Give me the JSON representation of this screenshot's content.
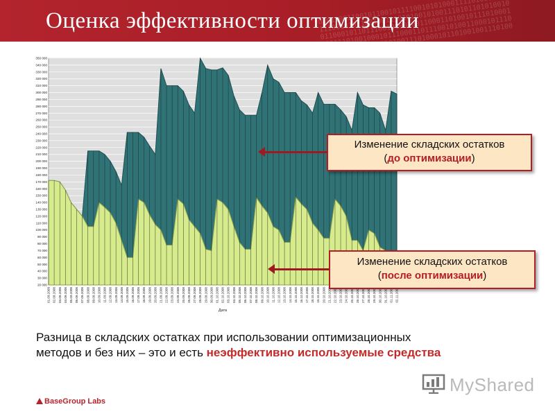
{
  "header": {
    "title": "Оценка эффективности оптимизации"
  },
  "callouts": {
    "before": {
      "line1": "Изменение складских остатков",
      "open": "(",
      "hl": "до оптимизации",
      "close": ")"
    },
    "after": {
      "line1": "Изменение складских остатков",
      "open": "(",
      "hl": "после оптимизации",
      "close": ")"
    }
  },
  "caption": {
    "line1": "Разница в складских остатках при использовании оптимизационных",
    "line2": "методов и без них – это и есть ",
    "hl": "неэффективно используемые средства"
  },
  "footer": {
    "brand": "BaseGroup Labs",
    "logo": "MyShared"
  },
  "colors": {
    "header": "#b3242d",
    "before_area": "#2f7376",
    "after_area": "#d6ec8c",
    "accent": "#b31e25"
  },
  "chart_data": {
    "type": "area",
    "xlabel": "Дата",
    "ylabel": "",
    "ylim": [
      20000,
      350000
    ],
    "yticks": [
      20000,
      30000,
      40000,
      50000,
      60000,
      70000,
      80000,
      90000,
      100000,
      110000,
      120000,
      130000,
      140000,
      150000,
      160000,
      170000,
      180000,
      190000,
      200000,
      210000,
      220000,
      230000,
      240000,
      250000,
      260000,
      270000,
      280000,
      290000,
      300000,
      310000,
      320000,
      330000,
      340000,
      350000
    ],
    "yticklabels": [
      "20 000",
      "30 000",
      "40 000",
      "50 000",
      "60 000",
      "70 000",
      "80 000",
      "90 000",
      "100 000",
      "110 000",
      "120 000",
      "130 000",
      "140 000",
      "150 000",
      "160 000",
      "170 000",
      "180 000",
      "190 000",
      "200 000",
      "210 000",
      "220 000",
      "230 000",
      "240 000",
      "250 000",
      "260 000",
      "270 000",
      "280 000",
      "290 000",
      "300 000",
      "310 000",
      "320 000",
      "330 000",
      "340 000",
      "350 000"
    ],
    "x": [
      "01.09.2008",
      "02.09.2008",
      "03.09.2008",
      "04.09.2008",
      "05.09.2008",
      "06.09.2008",
      "07.09.2008",
      "08.09.2008",
      "09.09.2008",
      "10.09.2008",
      "11.09.2008",
      "12.09.2008",
      "13.09.2008",
      "14.09.2008",
      "15.09.2008",
      "16.09.2008",
      "17.09.2008",
      "18.09.2008",
      "19.09.2008",
      "20.09.2008",
      "21.09.2008",
      "22.09.2008",
      "23.09.2008",
      "24.09.2008",
      "25.09.2008",
      "26.09.2008",
      "27.09.2008",
      "28.09.2008",
      "29.09.2008",
      "30.09.2008",
      "01.10.2008",
      "02.10.2008",
      "03.10.2008",
      "04.10.2008",
      "05.10.2008",
      "06.10.2008",
      "07.10.2008",
      "08.10.2008",
      "09.10.2008",
      "10.10.2008",
      "11.10.2008",
      "12.10.2008",
      "13.10.2008",
      "14.10.2008",
      "15.10.2008",
      "16.10.2008",
      "17.10.2008",
      "18.10.2008",
      "19.10.2008",
      "20.10.2008",
      "21.10.2008",
      "22.10.2008",
      "23.10.2008",
      "24.10.2008",
      "25.10.2008",
      "26.10.2008",
      "27.10.2008",
      "28.10.2008",
      "29.10.2008",
      "30.10.2008",
      "31.10.2008",
      "01.11.2008",
      "02.11.2008"
    ],
    "grid": true,
    "legend": "none",
    "series": [
      {
        "values": [
          172000,
          172000,
          170000,
          158000,
          140000,
          130000,
          120000,
          215000,
          215000,
          215000,
          210000,
          200000,
          185000,
          165000,
          242000,
          242000,
          242000,
          235000,
          222000,
          210000,
          335000,
          310000,
          310000,
          310000,
          302000,
          282000,
          270000,
          350000,
          335000,
          333000,
          333000,
          336000,
          325000,
          295000,
          275000,
          267000,
          267000,
          267000,
          300000,
          340000,
          320000,
          315000,
          300000,
          300000,
          300000,
          288000,
          282000,
          270000,
          300000,
          283000,
          283000,
          283000,
          275000,
          265000,
          245000,
          300000,
          282000,
          278000,
          278000,
          270000,
          245000,
          302000,
          298000
        ]
      },
      {
        "values": [
          172000,
          172000,
          170000,
          158000,
          140000,
          130000,
          120000,
          105000,
          105000,
          140000,
          133000,
          125000,
          110000,
          85000,
          60000,
          60000,
          145000,
          140000,
          122000,
          108000,
          100000,
          78000,
          78000,
          145000,
          138000,
          115000,
          105000,
          95000,
          72000,
          70000,
          145000,
          140000,
          130000,
          105000,
          82000,
          72000,
          72000,
          147000,
          135000,
          125000,
          105000,
          100000,
          82000,
          82000,
          148000,
          138000,
          130000,
          110000,
          100000,
          88000,
          88000,
          145000,
          135000,
          120000,
          85000,
          85000,
          70000,
          100000,
          95000,
          75000,
          70000,
          70000,
          70000
        ]
      }
    ]
  }
}
